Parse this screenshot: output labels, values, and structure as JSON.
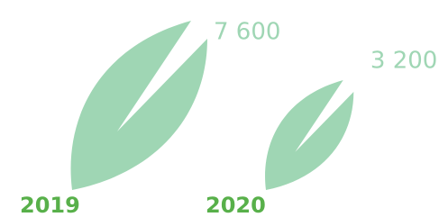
{
  "chart_data": {
    "type": "pictogram",
    "categories": [
      "2019",
      "2020"
    ],
    "values": [
      7600,
      3200
    ],
    "value_labels": [
      "7 600",
      "3 200"
    ],
    "color": "#9fd6b4",
    "label_color": "#9fd6b4",
    "category_color": "#58b04a"
  }
}
